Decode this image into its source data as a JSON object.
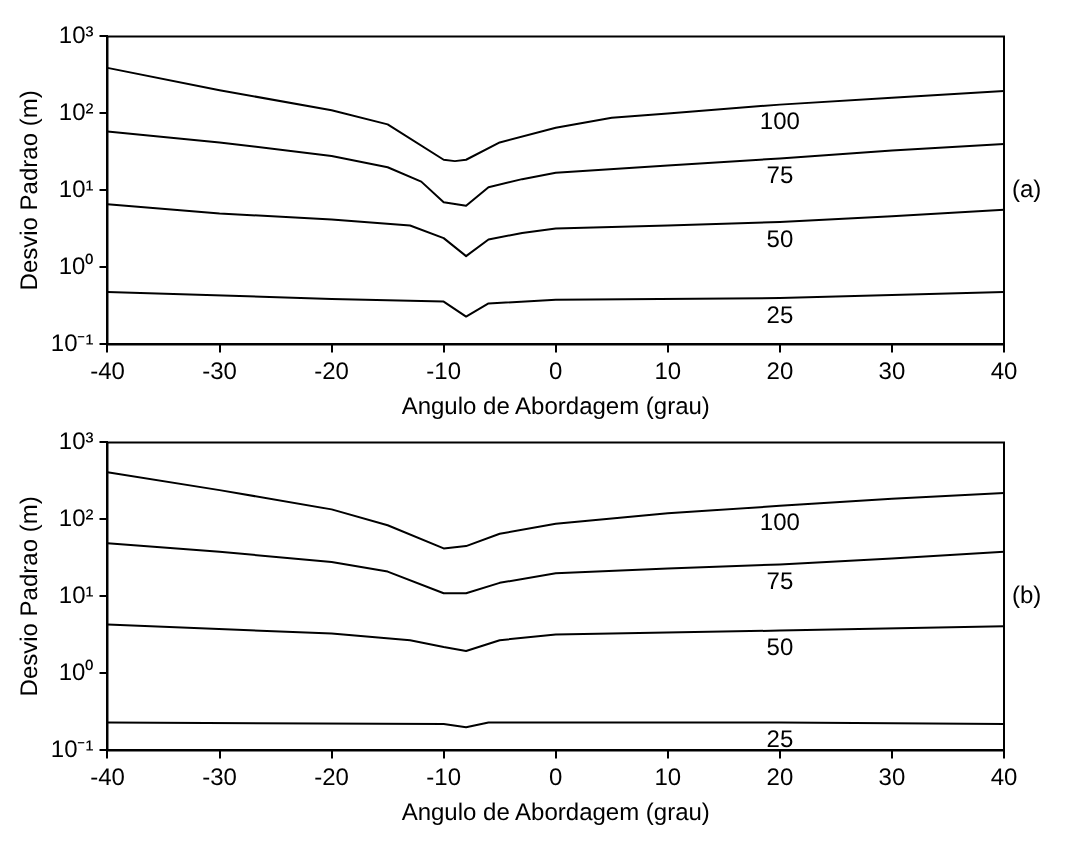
{
  "chart_data": [
    {
      "type": "line",
      "xlabel": "Angulo de Abordagem (grau)",
      "ylabel": "Desvio Padrao (m)",
      "xlim": [
        -40,
        40
      ],
      "xticks": [
        -40,
        -30,
        -20,
        -10,
        0,
        10,
        20,
        30,
        40
      ],
      "ylim": [
        0.1,
        1000
      ],
      "yticks": [
        {
          "value": 0.1,
          "label": "10⁻¹"
        },
        {
          "value": 1,
          "label": "10⁰"
        },
        {
          "value": 10,
          "label": "10¹"
        },
        {
          "value": 100,
          "label": "10²"
        },
        {
          "value": 1000,
          "label": "10³"
        }
      ],
      "log": "y",
      "grid": false,
      "legend": false,
      "annotations": [
        "(a)"
      ],
      "series": [
        {
          "name": "100",
          "color": "#000000",
          "x": [
            -40,
            -30,
            -20,
            -15,
            -10,
            -9,
            -8,
            -5,
            0,
            5,
            10,
            20,
            30,
            40
          ],
          "values": [
            390,
            200,
            110,
            72,
            25,
            24,
            25,
            42,
            65,
            88,
            100,
            130,
            160,
            195
          ]
        },
        {
          "name": "75",
          "color": "#000000",
          "x": [
            -40,
            -30,
            -20,
            -15,
            -12,
            -10,
            -8,
            -6,
            -3,
            0,
            10,
            20,
            30,
            40
          ],
          "values": [
            58,
            42,
            28,
            20,
            13,
            7,
            6.3,
            11,
            14,
            17,
            21,
            26,
            33,
            40
          ]
        },
        {
          "name": "50",
          "color": "#000000",
          "x": [
            -40,
            -30,
            -20,
            -13,
            -10,
            -8,
            -6,
            -3,
            0,
            10,
            20,
            30,
            40
          ],
          "values": [
            6.6,
            5,
            4.2,
            3.5,
            2.4,
            1.4,
            2.3,
            2.8,
            3.2,
            3.5,
            3.9,
            4.6,
            5.6
          ]
        },
        {
          "name": "25",
          "color": "#000000",
          "x": [
            -40,
            -20,
            -10,
            -8,
            -6,
            0,
            20,
            40
          ],
          "values": [
            0.48,
            0.39,
            0.36,
            0.23,
            0.34,
            0.38,
            0.4,
            0.48
          ]
        }
      ]
    },
    {
      "type": "line",
      "xlabel": "Angulo de Abordagem (grau)",
      "ylabel": "Desvio Padrao (m)",
      "xlim": [
        -40,
        40
      ],
      "xticks": [
        -40,
        -30,
        -20,
        -10,
        0,
        10,
        20,
        30,
        40
      ],
      "ylim": [
        0.1,
        1000
      ],
      "yticks": [
        {
          "value": 0.1,
          "label": "10⁻¹"
        },
        {
          "value": 1,
          "label": "10⁰"
        },
        {
          "value": 10,
          "label": "10¹"
        },
        {
          "value": 100,
          "label": "10²"
        },
        {
          "value": 1000,
          "label": "10³"
        }
      ],
      "log": "y",
      "grid": false,
      "legend": false,
      "annotations": [
        "(b)"
      ],
      "series": [
        {
          "name": "100",
          "color": "#000000",
          "x": [
            -40,
            -30,
            -20,
            -15,
            -10,
            -8,
            -5,
            0,
            10,
            20,
            30,
            40
          ],
          "values": [
            410,
            240,
            135,
            84,
            42,
            45,
            65,
            88,
            120,
            150,
            185,
            220
          ]
        },
        {
          "name": "75",
          "color": "#000000",
          "x": [
            -40,
            -30,
            -20,
            -15,
            -10,
            -8,
            -5,
            0,
            10,
            20,
            30,
            40
          ],
          "values": [
            49,
            38,
            28,
            21,
            11,
            11,
            15,
            20,
            23,
            26,
            31,
            38
          ]
        },
        {
          "name": "50",
          "color": "#000000",
          "x": [
            -40,
            -20,
            -13,
            -10,
            -8,
            -5,
            0,
            20,
            40
          ],
          "values": [
            4.3,
            3.3,
            2.7,
            2.2,
            1.95,
            2.7,
            3.2,
            3.6,
            4.1
          ]
        },
        {
          "name": "25",
          "color": "#000000",
          "x": [
            -40,
            -10,
            -8,
            -6,
            20,
            40
          ],
          "values": [
            0.23,
            0.22,
            0.2,
            0.23,
            0.23,
            0.22
          ]
        }
      ]
    }
  ]
}
